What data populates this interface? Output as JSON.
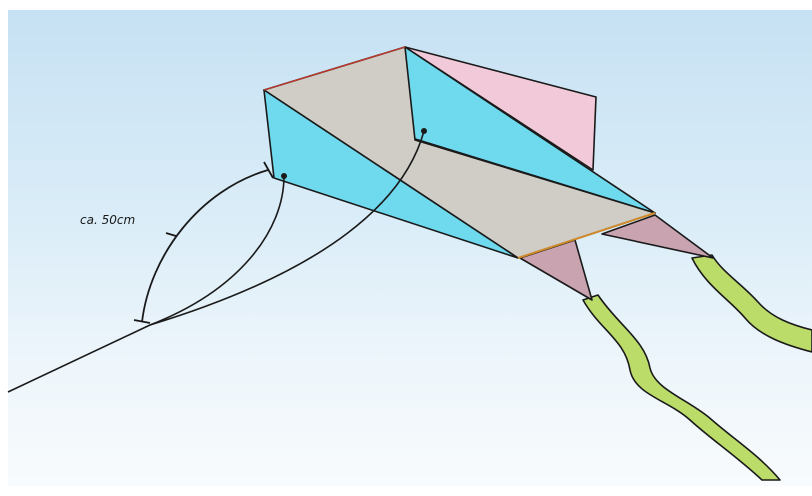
{
  "annotation": {
    "measure_label": "ca. 50cm"
  },
  "colors": {
    "sky_top": "#c6e1f3",
    "sky_bottom": "#f8fbfd",
    "kite_gray": "#cfcdc6",
    "kite_cyan": "#6fd9ee",
    "kite_pink": "#f1c9d9",
    "tail_mauve": "#c9a3b0",
    "tail_ribbon": "#bcdc6a",
    "outline": "#1a1a1a"
  }
}
